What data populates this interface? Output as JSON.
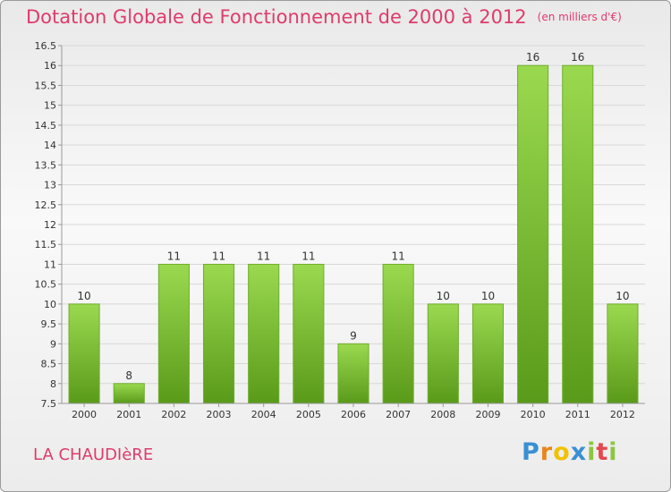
{
  "header": {
    "title": "Dotation Globale de Fonctionnement de 2000 à 2012",
    "unit": "(en milliers d'€)"
  },
  "footer": {
    "city": "LA CHAUDIèRE",
    "logo": "Proxiti"
  },
  "colors": {
    "title": "#de3b6e",
    "bar_top": "#9ad94f",
    "bar_bottom": "#5a9a1a"
  },
  "chart_data": {
    "type": "bar",
    "title": "Dotation Globale de Fonctionnement de 2000 à 2012",
    "subtitle": "(en milliers d'€)",
    "xlabel": "",
    "ylabel": "",
    "categories": [
      "2000",
      "2001",
      "2002",
      "2003",
      "2004",
      "2005",
      "2006",
      "2007",
      "2008",
      "2009",
      "2010",
      "2011",
      "2012"
    ],
    "values": [
      10,
      8,
      11,
      11,
      11,
      11,
      9,
      11,
      10,
      10,
      16,
      16,
      10
    ],
    "data_labels": [
      "10",
      "8",
      "11",
      "11",
      "11",
      "11",
      "9",
      "11",
      "10",
      "10",
      "16",
      "16",
      "10"
    ],
    "ylim": [
      7.5,
      16.5
    ],
    "yticks": [
      "7.5",
      "8",
      "8.5",
      "9",
      "9.5",
      "10",
      "10.5",
      "11",
      "11.5",
      "12",
      "12.5",
      "13",
      "13.5",
      "14",
      "14.5",
      "15",
      "15.5",
      "16",
      "16.5"
    ],
    "grid": true,
    "legend": "none"
  }
}
